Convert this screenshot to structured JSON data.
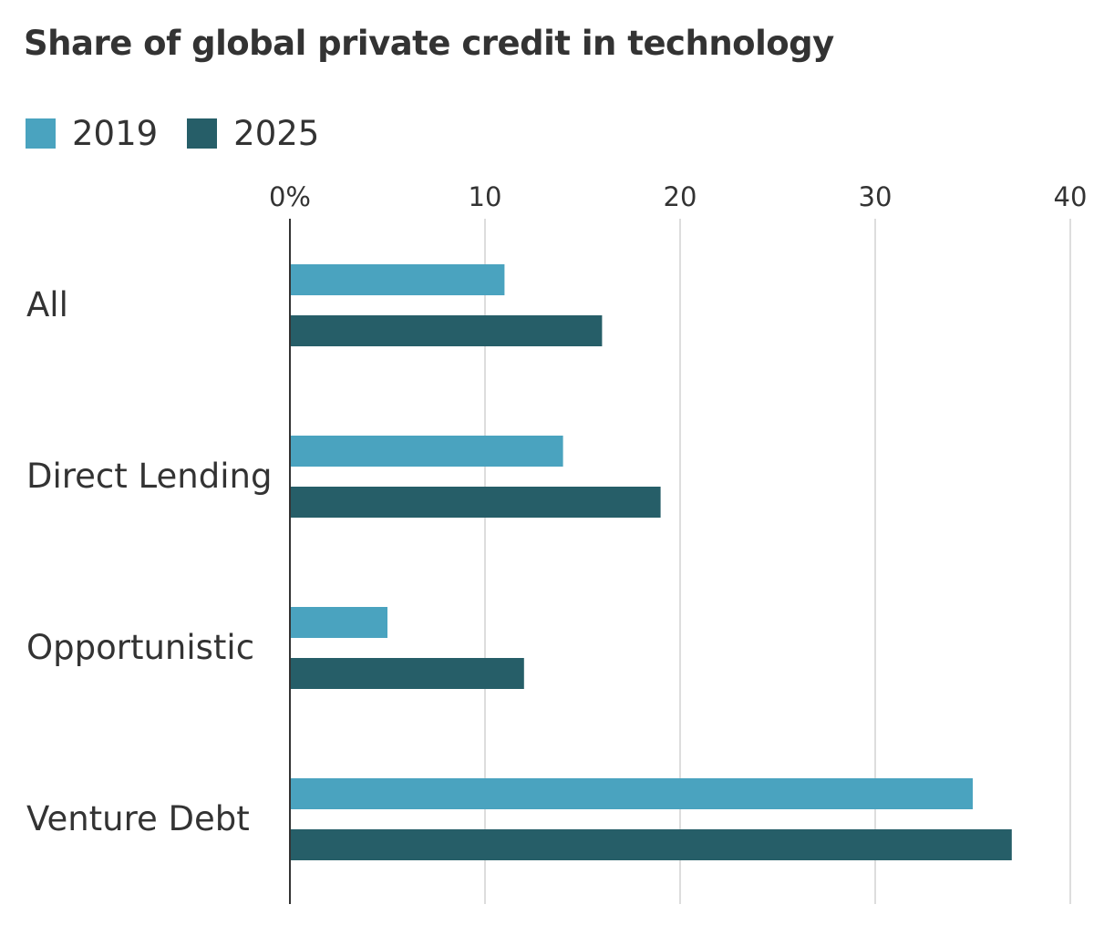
{
  "chart_data": {
    "type": "bar",
    "orientation": "horizontal",
    "title": "Share of global private credit in technology",
    "categories": [
      "All",
      "Direct Lending",
      "Opportunistic",
      "Venture Debt"
    ],
    "series": [
      {
        "name": "2019",
        "color": "#4aa3bf",
        "values": [
          11,
          14,
          5,
          35
        ]
      },
      {
        "name": "2025",
        "color": "#265e68",
        "values": [
          16,
          19,
          12,
          37
        ]
      }
    ],
    "xlim": [
      0,
      40
    ],
    "xticks": [
      0,
      10,
      20,
      30,
      40
    ],
    "xtick_labels": [
      "0%",
      "10",
      "20",
      "30",
      "40"
    ],
    "xlabel": "",
    "ylabel": "",
    "grid": true,
    "legend_position": "top-left"
  }
}
